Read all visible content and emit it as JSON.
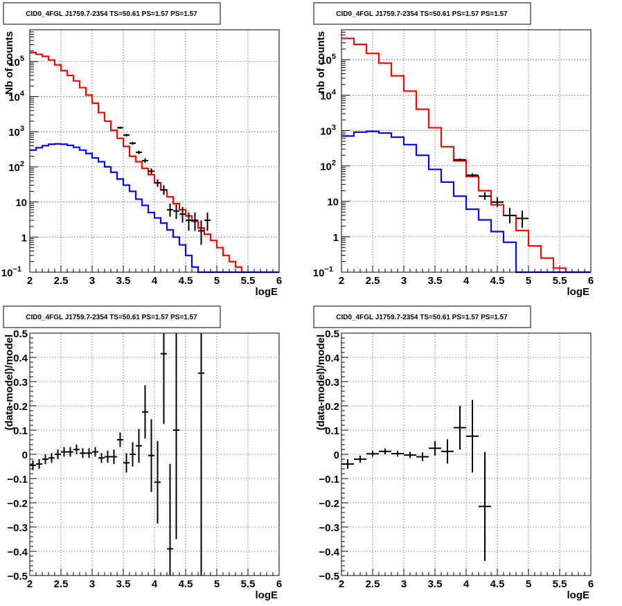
{
  "colors": {
    "model_total": "#ff0000",
    "model_source": "#0000ff",
    "data": "#000000"
  },
  "chart_data": [
    {
      "type": "step-histogram",
      "title": "CID0_4FGL J1759.7-2354 TS=50.61 PS=1.57 PS=1.57",
      "xlabel": "logE",
      "ylabel": "Nb of counts",
      "xlim": [
        2,
        6
      ],
      "ylim": [
        0.1,
        800000
      ],
      "yscale": "log",
      "grid": true,
      "xticks": [
        "2",
        "2.5",
        "3",
        "3.5",
        "4",
        "4.5",
        "5",
        "5.5",
        "6"
      ],
      "yticks": [
        {
          "value": 0.1,
          "label": "10",
          "exp": "−1"
        },
        {
          "value": 1,
          "label": "1",
          "exp": ""
        },
        {
          "value": 10,
          "label": "10",
          "exp": ""
        },
        {
          "value": 100,
          "label": "10",
          "exp": "2"
        },
        {
          "value": 1000,
          "label": "10",
          "exp": "3"
        },
        {
          "value": 10000,
          "label": "10",
          "exp": "4"
        },
        {
          "value": 100000,
          "label": "10",
          "exp": "5"
        }
      ],
      "bin_edges": [
        2.0,
        2.1,
        2.2,
        2.3,
        2.4,
        2.5,
        2.6,
        2.7,
        2.8,
        2.9,
        3.0,
        3.1,
        3.2,
        3.3,
        3.4,
        3.5,
        3.6,
        3.7,
        3.8,
        3.9,
        4.0,
        4.1,
        4.2,
        4.3,
        4.4,
        4.5,
        4.6,
        4.7,
        4.8,
        4.9,
        5.0,
        5.1,
        5.2,
        5.3,
        5.4,
        5.5,
        5.6,
        5.7,
        5.8,
        5.9,
        6.0
      ],
      "series": [
        {
          "role": "model_total",
          "values": [
            180000,
            160000,
            140000,
            110000,
            80000,
            55000,
            40000,
            28000,
            18000,
            11000,
            6500,
            3500,
            2000,
            1100,
            650,
            380,
            200,
            140,
            90,
            60,
            35,
            22,
            14,
            9,
            6,
            4,
            2.8,
            1.8,
            1.2,
            0.8,
            0.5,
            0.3,
            0.2,
            0.14,
            0.1,
            0.1,
            0.1,
            0.1,
            0.1,
            0.1
          ]
        },
        {
          "role": "model_source",
          "values": [
            300,
            350,
            400,
            440,
            450,
            440,
            410,
            360,
            300,
            240,
            180,
            140,
            100,
            70,
            45,
            30,
            20,
            12,
            8,
            5,
            3.5,
            2.5,
            1.6,
            1.0,
            0.6,
            0.3,
            0.14,
            0.1,
            0.1,
            0.1,
            0.1,
            0.1,
            0.1,
            0.1,
            0.1,
            0.1,
            0.1,
            0.1,
            0.1,
            0.1
          ]
        }
      ],
      "data_points": [
        {
          "x": 3.45,
          "y": 1300,
          "xerr": 0.05,
          "ylo": 1200,
          "yhi": 1400
        },
        {
          "x": 3.55,
          "y": 800,
          "xerr": 0.05,
          "ylo": 730,
          "yhi": 870
        },
        {
          "x": 3.65,
          "y": 470,
          "xerr": 0.05,
          "ylo": 425,
          "yhi": 515
        },
        {
          "x": 3.75,
          "y": 260,
          "xerr": 0.05,
          "ylo": 230,
          "yhi": 290
        },
        {
          "x": 3.85,
          "y": 150,
          "xerr": 0.05,
          "ylo": 130,
          "yhi": 175
        },
        {
          "x": 3.95,
          "y": 75,
          "xerr": 0.05,
          "ylo": 62,
          "yhi": 90
        },
        {
          "x": 4.05,
          "y": 35,
          "xerr": 0.05,
          "ylo": 27,
          "yhi": 44
        },
        {
          "x": 4.15,
          "y": 22,
          "xerr": 0.05,
          "ylo": 16,
          "yhi": 30
        },
        {
          "x": 4.25,
          "y": 6,
          "xerr": 0.05,
          "ylo": 3.8,
          "yhi": 9
        },
        {
          "x": 4.35,
          "y": 5.5,
          "xerr": 0.05,
          "ylo": 3.3,
          "yhi": 8.5
        },
        {
          "x": 4.45,
          "y": 4.5,
          "xerr": 0.05,
          "ylo": 2.6,
          "yhi": 7.2
        },
        {
          "x": 4.55,
          "y": 3,
          "xerr": 0.05,
          "ylo": 1.5,
          "yhi": 5
        },
        {
          "x": 4.65,
          "y": 3,
          "xerr": 0.05,
          "ylo": 1.5,
          "yhi": 5
        },
        {
          "x": 4.75,
          "y": 1.5,
          "xerr": 0.05,
          "ylo": 0.6,
          "yhi": 3
        },
        {
          "x": 4.85,
          "y": 3,
          "xerr": 0.05,
          "ylo": 1.5,
          "yhi": 5
        }
      ]
    },
    {
      "type": "step-histogram",
      "title": "CID0_4FGL J1759.7-2354 TS=50.61 PS=1.57 PS=1.57",
      "xlabel": "logE",
      "ylabel": "nb of counts",
      "xlim": [
        2,
        6
      ],
      "ylim": [
        0.1,
        700000
      ],
      "yscale": "log",
      "grid": true,
      "xticks": [
        "2",
        "2.5",
        "3",
        "3.5",
        "4",
        "4.5",
        "5",
        "5.5",
        "6"
      ],
      "yticks": [
        {
          "value": 0.1,
          "label": "10",
          "exp": "−1"
        },
        {
          "value": 1,
          "label": "1",
          "exp": ""
        },
        {
          "value": 10,
          "label": "10",
          "exp": ""
        },
        {
          "value": 100,
          "label": "10",
          "exp": "2"
        },
        {
          "value": 1000,
          "label": "10",
          "exp": "3"
        },
        {
          "value": 10000,
          "label": "10",
          "exp": "4"
        },
        {
          "value": 100000,
          "label": "10",
          "exp": "5"
        }
      ],
      "bin_edges": [
        2.0,
        2.2,
        2.4,
        2.6,
        2.8,
        3.0,
        3.2,
        3.4,
        3.6,
        3.8,
        4.0,
        4.2,
        4.4,
        4.6,
        4.8,
        5.0,
        5.2,
        5.4,
        5.6,
        5.8,
        6.0
      ],
      "series": [
        {
          "role": "model_total",
          "values": [
            400000,
            270000,
            150000,
            80000,
            35000,
            13000,
            4000,
            1200,
            350,
            140,
            50,
            20,
            8,
            4,
            1.5,
            0.55,
            0.25,
            0.13,
            0.1,
            0.1
          ]
        },
        {
          "role": "model_source",
          "values": [
            700,
            900,
            950,
            850,
            650,
            400,
            200,
            80,
            35,
            14,
            6,
            3,
            1.4,
            0.7,
            0.1,
            0.1,
            0.1,
            0.1,
            0.1,
            0.1
          ]
        }
      ],
      "data_points": [
        {
          "x": 3.9,
          "y": 150,
          "xerr": 0.1,
          "ylo": 138,
          "yhi": 162
        },
        {
          "x": 4.1,
          "y": 55,
          "xerr": 0.1,
          "ylo": 48,
          "yhi": 62
        },
        {
          "x": 4.3,
          "y": 14,
          "xerr": 0.1,
          "ylo": 11,
          "yhi": 18
        },
        {
          "x": 4.5,
          "y": 9.5,
          "xerr": 0.1,
          "ylo": 7,
          "yhi": 13
        },
        {
          "x": 4.7,
          "y": 4,
          "xerr": 0.1,
          "ylo": 2.4,
          "yhi": 6.5
        },
        {
          "x": 4.9,
          "y": 3.3,
          "xerr": 0.1,
          "ylo": 1.8,
          "yhi": 5.5
        }
      ]
    },
    {
      "type": "scatter",
      "title": "CID0_4FGL J1759.7-2354 TS=50.61 PS=1.57 PS=1.57",
      "xlabel": "logE",
      "ylabel": "(data-model)/model",
      "xlim": [
        2,
        6
      ],
      "ylim": [
        -0.5,
        0.5
      ],
      "grid": true,
      "xticks": [
        "2",
        "2.5",
        "3",
        "3.5",
        "4",
        "4.5",
        "5",
        "5.5",
        "6"
      ],
      "yticks": [
        "−0.5",
        "−0.4",
        "−0.3",
        "−0.2",
        "−0.1",
        "0",
        "0.1",
        "0.2",
        "0.3",
        "0.4",
        "0.5"
      ],
      "points": [
        {
          "x": 2.05,
          "y": -0.045,
          "xerr": 0.05,
          "yerr": 0.02
        },
        {
          "x": 2.15,
          "y": -0.04,
          "xerr": 0.05,
          "yerr": 0.02
        },
        {
          "x": 2.25,
          "y": -0.02,
          "xerr": 0.05,
          "yerr": 0.02
        },
        {
          "x": 2.35,
          "y": -0.015,
          "xerr": 0.05,
          "yerr": 0.02
        },
        {
          "x": 2.45,
          "y": 0.0,
          "xerr": 0.05,
          "yerr": 0.02
        },
        {
          "x": 2.55,
          "y": 0.01,
          "xerr": 0.05,
          "yerr": 0.02
        },
        {
          "x": 2.65,
          "y": 0.01,
          "xerr": 0.05,
          "yerr": 0.02
        },
        {
          "x": 2.75,
          "y": 0.02,
          "xerr": 0.05,
          "yerr": 0.02
        },
        {
          "x": 2.85,
          "y": 0.005,
          "xerr": 0.05,
          "yerr": 0.02
        },
        {
          "x": 2.95,
          "y": 0.005,
          "xerr": 0.05,
          "yerr": 0.02
        },
        {
          "x": 3.05,
          "y": 0.01,
          "xerr": 0.05,
          "yerr": 0.02
        },
        {
          "x": 3.15,
          "y": -0.015,
          "xerr": 0.05,
          "yerr": 0.02
        },
        {
          "x": 3.25,
          "y": -0.01,
          "xerr": 0.05,
          "yerr": 0.025
        },
        {
          "x": 3.35,
          "y": -0.01,
          "xerr": 0.05,
          "yerr": 0.03
        },
        {
          "x": 3.45,
          "y": 0.06,
          "xerr": 0.05,
          "yerr": 0.03
        },
        {
          "x": 3.55,
          "y": -0.035,
          "xerr": 0.05,
          "yerr": 0.04
        },
        {
          "x": 3.65,
          "y": 0.0,
          "xerr": 0.05,
          "yerr": 0.05
        },
        {
          "x": 3.75,
          "y": 0.035,
          "xerr": 0.05,
          "yerr": 0.07
        },
        {
          "x": 3.85,
          "y": 0.175,
          "xerr": 0.05,
          "yerr": 0.11
        },
        {
          "x": 3.95,
          "y": -0.005,
          "xerr": 0.05,
          "yerr": 0.15
        },
        {
          "x": 4.05,
          "y": -0.115,
          "xerr": 0.05,
          "yerr": 0.17
        },
        {
          "x": 4.15,
          "y": 0.415,
          "xerr": 0.05,
          "yerr": 0.29
        },
        {
          "x": 4.25,
          "y": -0.39,
          "xerr": 0.05,
          "yerr": 0.35
        },
        {
          "x": 4.35,
          "y": 0.1,
          "xerr": 0.05,
          "yerr": 0.45
        },
        {
          "x": 4.75,
          "y": 0.335,
          "xerr": 0.05,
          "yerr": 1.0
        }
      ]
    },
    {
      "type": "scatter",
      "title": "CID0_4FGL J1759.7-2354 TS=50.61 PS=1.57 PS=1.57",
      "xlabel": "logE",
      "ylabel": "(data-model)/model",
      "xlim": [
        2,
        6
      ],
      "ylim": [
        -0.5,
        0.5
      ],
      "grid": true,
      "xticks": [
        "2",
        "2.5",
        "3",
        "3.5",
        "4",
        "4.5",
        "5",
        "5.5",
        "6"
      ],
      "yticks": [
        "−0.5",
        "−0.4",
        "−0.3",
        "−0.2",
        "−0.1",
        "0",
        "0.1",
        "0.2",
        "0.3",
        "0.4",
        "0.5"
      ],
      "points": [
        {
          "x": 2.1,
          "y": -0.04,
          "xerr": 0.1,
          "yerr": 0.02
        },
        {
          "x": 2.3,
          "y": -0.02,
          "xerr": 0.1,
          "yerr": 0.015
        },
        {
          "x": 2.5,
          "y": 0.002,
          "xerr": 0.1,
          "yerr": 0.012
        },
        {
          "x": 2.7,
          "y": 0.012,
          "xerr": 0.1,
          "yerr": 0.012
        },
        {
          "x": 2.9,
          "y": 0.003,
          "xerr": 0.1,
          "yerr": 0.012
        },
        {
          "x": 3.1,
          "y": -0.003,
          "xerr": 0.1,
          "yerr": 0.013
        },
        {
          "x": 3.3,
          "y": -0.01,
          "xerr": 0.1,
          "yerr": 0.018
        },
        {
          "x": 3.5,
          "y": 0.025,
          "xerr": 0.1,
          "yerr": 0.03
        },
        {
          "x": 3.7,
          "y": 0.012,
          "xerr": 0.1,
          "yerr": 0.05
        },
        {
          "x": 3.9,
          "y": 0.11,
          "xerr": 0.1,
          "yerr": 0.09
        },
        {
          "x": 4.1,
          "y": 0.075,
          "xerr": 0.1,
          "yerr": 0.15
        },
        {
          "x": 4.3,
          "y": -0.215,
          "xerr": 0.1,
          "yerr": 0.225
        }
      ]
    }
  ]
}
